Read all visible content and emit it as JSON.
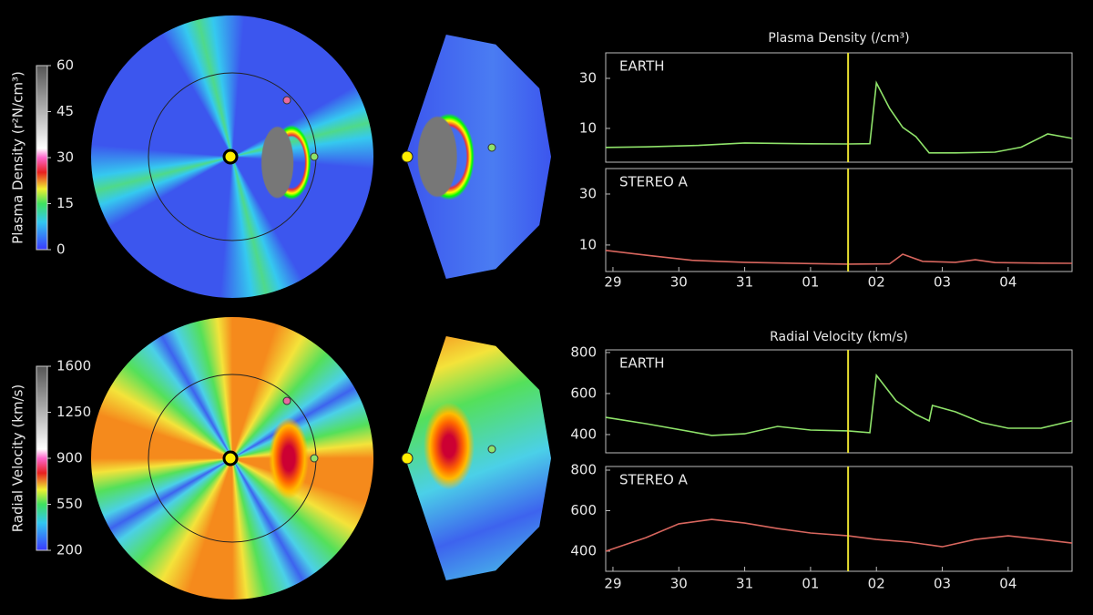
{
  "chart_data": [
    {
      "type": "colorbar",
      "label": "Plasma Density (r²N/cm³)",
      "ylim": [
        0,
        60
      ],
      "yticks": [
        0,
        15,
        30,
        45,
        60
      ]
    },
    {
      "type": "colorbar",
      "label": "Radial Velocity (km/s)",
      "ylim": [
        200,
        1600
      ],
      "yticks": [
        200,
        550,
        900,
        1250,
        1600
      ]
    },
    {
      "type": "line",
      "title": "Plasma Density (/cm³)",
      "x": [
        28.89,
        29.5,
        30.3,
        31.0,
        31.8,
        32.57,
        32.9,
        33.0,
        33.2,
        33.4,
        33.6,
        33.8,
        34.2,
        34.8,
        35.2,
        35.6,
        35.97
      ],
      "series": [
        {
          "name": "EARTH",
          "color": "#8fe36a",
          "values": [
            2.4,
            2.6,
            3.2,
            4.2,
            3.9,
            3.8,
            3.9,
            28.2,
            18.0,
            10.4,
            6.7,
            0.2,
            0.2,
            0.5,
            2.5,
            7.8,
            6.0
          ]
        }
      ],
      "xlim": [
        28.89,
        35.97
      ],
      "ylim": [
        -3.5,
        40.2
      ],
      "yticks": [
        10,
        30
      ],
      "marker_x": 32.57
    },
    {
      "type": "line",
      "x": [
        28.89,
        29.5,
        30.2,
        31.0,
        32.0,
        32.57,
        33.2,
        33.4,
        33.7,
        34.2,
        34.5,
        34.8,
        35.5,
        35.97
      ],
      "series": [
        {
          "name": "STEREO A",
          "color": "#d8665e",
          "values": [
            7.9,
            6.0,
            4.0,
            3.2,
            2.7,
            2.5,
            2.6,
            6.4,
            3.6,
            3.2,
            4.2,
            3.1,
            2.9,
            2.8
          ]
        }
      ],
      "xlim": [
        28.89,
        35.97
      ],
      "ylim": [
        -0.4,
        40.0
      ],
      "yticks": [
        10,
        30
      ],
      "marker_x": 32.57,
      "xticks": [
        {
          "value": 29,
          "label": "29"
        },
        {
          "value": 30,
          "label": "30"
        },
        {
          "value": 31,
          "label": "31"
        },
        {
          "value": 32,
          "label": "01"
        },
        {
          "value": 33,
          "label": "02"
        },
        {
          "value": 34,
          "label": "03"
        },
        {
          "value": 35,
          "label": "04"
        }
      ]
    },
    {
      "type": "line",
      "title": "Radial Velocity (km/s)",
      "x": [
        28.89,
        29.5,
        30.5,
        31.0,
        31.5,
        32.0,
        32.57,
        32.9,
        33.0,
        33.3,
        33.6,
        33.8,
        33.85,
        34.2,
        34.6,
        35.0,
        35.5,
        35.97
      ],
      "series": [
        {
          "name": "EARTH",
          "color": "#8fe36a",
          "values": [
            484,
            453,
            396,
            404,
            440,
            422,
            418,
            409,
            689,
            564,
            498,
            467,
            542,
            511,
            458,
            431,
            431,
            467
          ]
        }
      ],
      "xlim": [
        28.89,
        35.97
      ],
      "ylim": [
        311,
        813
      ],
      "yticks": [
        400,
        600,
        800
      ],
      "marker_x": 32.57
    },
    {
      "type": "line",
      "x": [
        28.89,
        29.5,
        30.0,
        30.5,
        31.0,
        31.5,
        32.0,
        32.57,
        33.0,
        33.5,
        34.0,
        34.5,
        35.0,
        35.5,
        35.97
      ],
      "series": [
        {
          "name": "STEREO A",
          "color": "#d8665e",
          "values": [
            400,
            467,
            535,
            557,
            539,
            512,
            490,
            476,
            458,
            445,
            422,
            458,
            476,
            458,
            440
          ]
        }
      ],
      "xlim": [
        28.89,
        35.97
      ],
      "ylim": [
        301,
        818
      ],
      "yticks": [
        400,
        600,
        800
      ],
      "marker_x": 32.57,
      "xticks": [
        {
          "value": 29,
          "label": "29"
        },
        {
          "value": 30,
          "label": "30"
        },
        {
          "value": 31,
          "label": "31"
        },
        {
          "value": 32,
          "label": "01"
        },
        {
          "value": 33,
          "label": "02"
        },
        {
          "value": 34,
          "label": "03"
        },
        {
          "value": 35,
          "label": "04"
        }
      ]
    }
  ]
}
